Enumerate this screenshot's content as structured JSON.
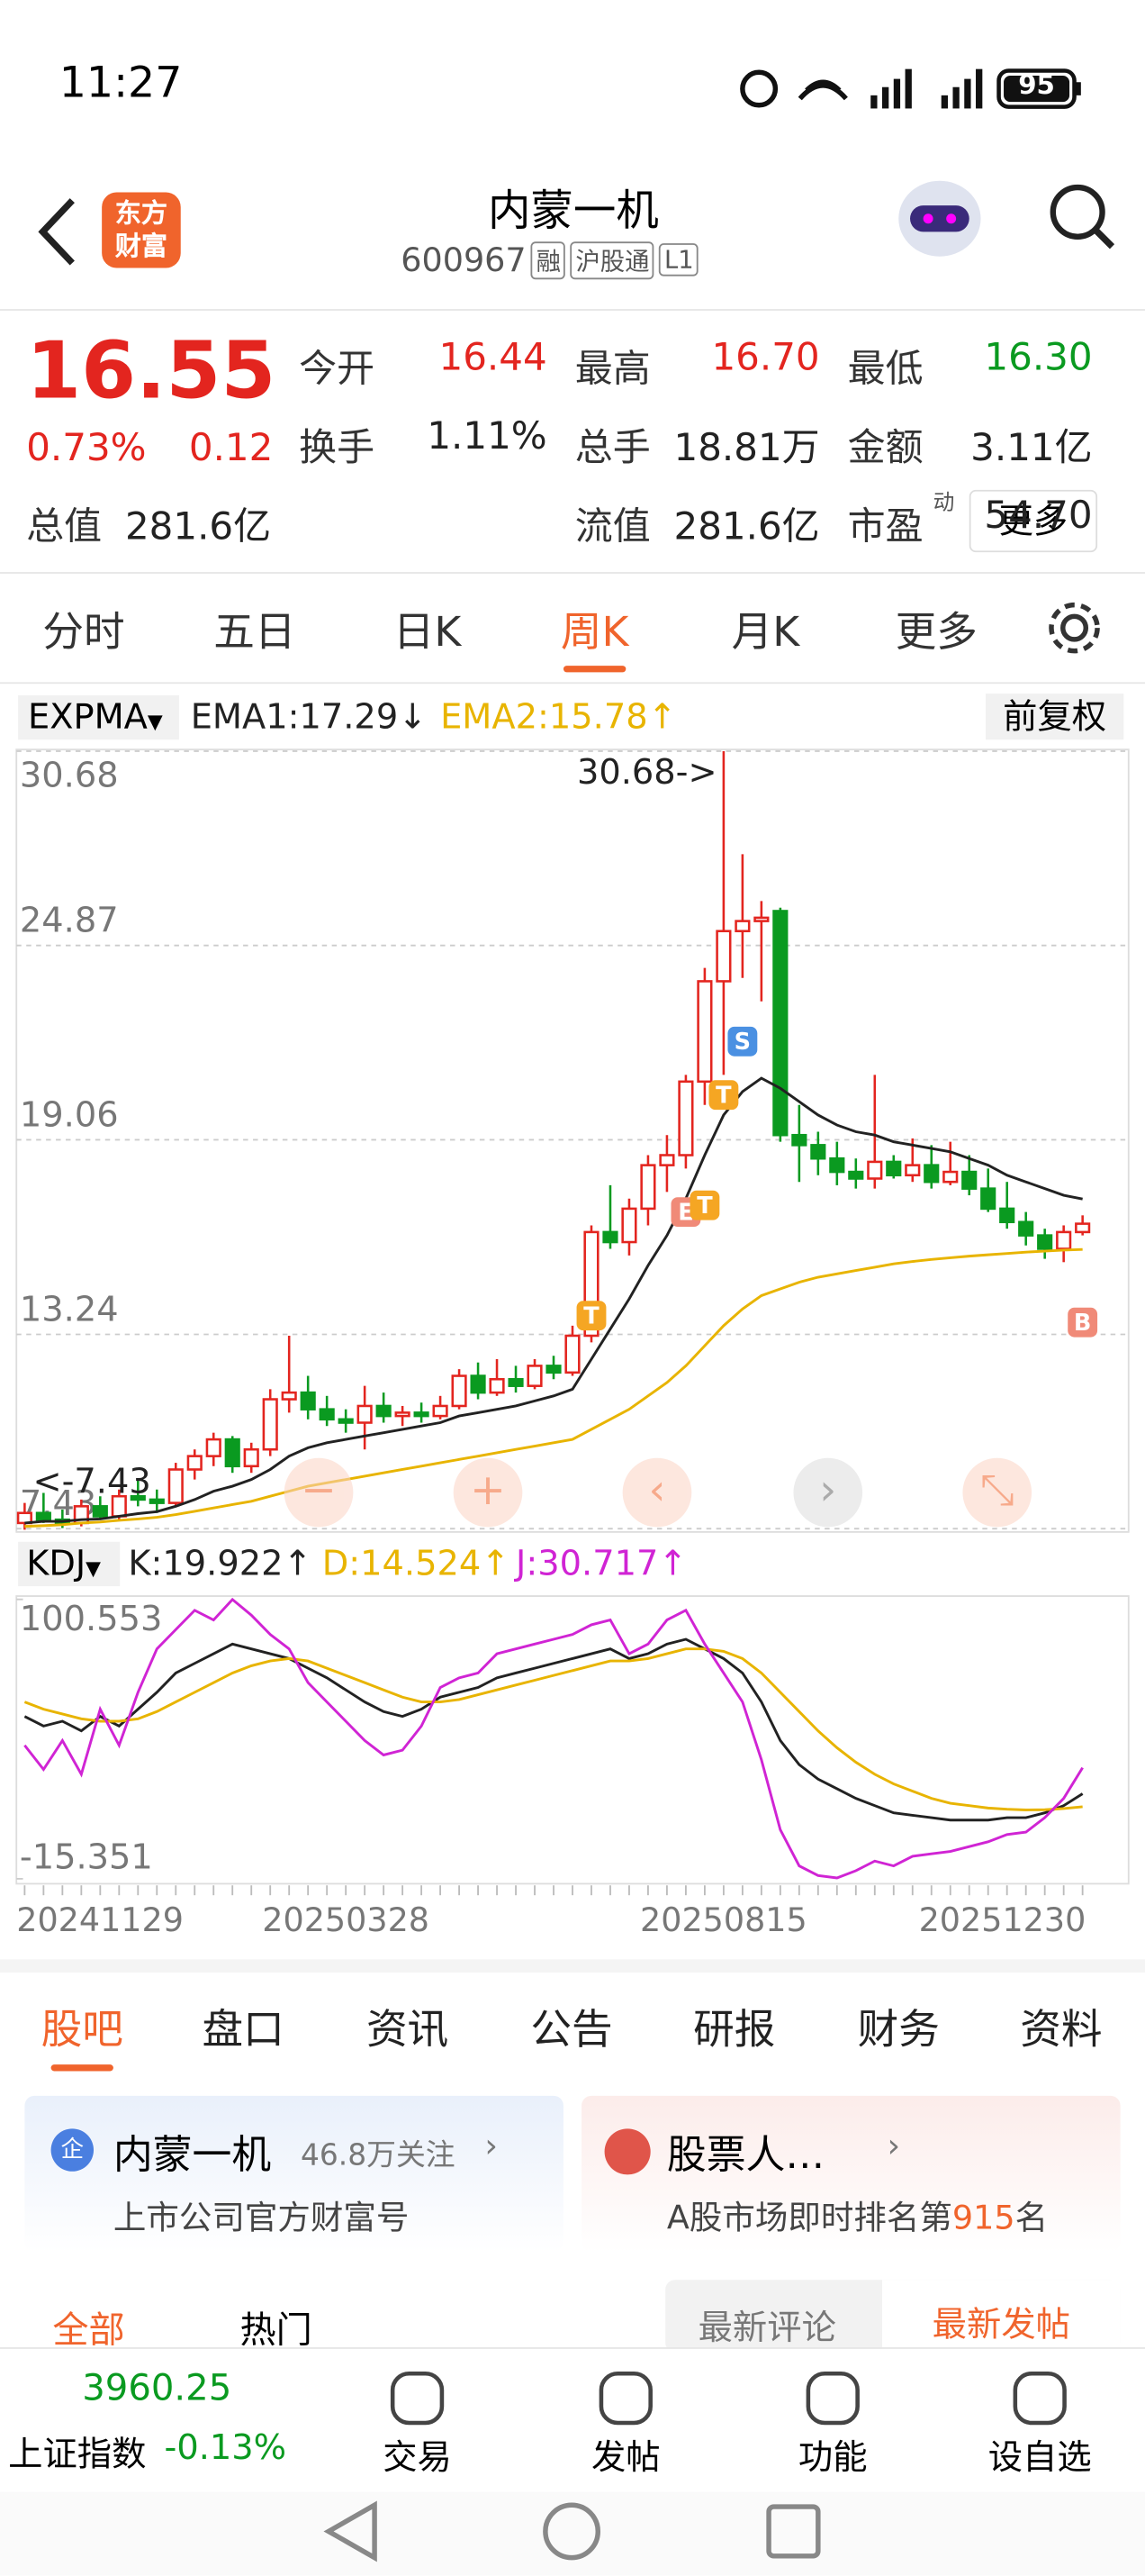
{
  "status_bar": {
    "time": "11:27",
    "battery": "95"
  },
  "header": {
    "logo": [
      "东方",
      "财富"
    ],
    "title": "内蒙一机",
    "code": "600967",
    "tags": [
      "融",
      "沪股通",
      "L1"
    ]
  },
  "quote": {
    "price": "16.55",
    "change_pct": "0.73%",
    "change": "0.12",
    "fields": [
      {
        "label": "今开",
        "value": "16.44",
        "color": "#e3251f"
      },
      {
        "label": "最高",
        "value": "16.70",
        "color": "#e3251f"
      },
      {
        "label": "最低",
        "value": "16.30",
        "color": "#0a9a20"
      },
      {
        "label": "换手",
        "value": "1.11%",
        "color": "#222"
      },
      {
        "label": "总手",
        "value": "18.81万",
        "color": "#222"
      },
      {
        "label": "金额",
        "value": "3.11亿",
        "color": "#222"
      },
      {
        "label": "总值",
        "value": "281.6亿",
        "color": "#222"
      },
      {
        "label": "流值",
        "value": "281.6亿",
        "color": "#222"
      },
      {
        "label": "市盈",
        "sup": "动",
        "value": "54.70",
        "color": "#222"
      }
    ],
    "more": "更多"
  },
  "period_tabs": {
    "items": [
      "分时",
      "五日",
      "日K",
      "周K",
      "月K",
      "更多"
    ],
    "active": 3
  },
  "chart_data": [
    {
      "type": "candlestick",
      "indicator": "EXPMA",
      "adjust": "前复权",
      "max_label": "30.68->",
      "min_label": "<-7.43",
      "ylim": [
        7.43,
        30.68
      ],
      "yticks": [
        7.43,
        13.24,
        19.06,
        24.87,
        30.68
      ],
      "grid": true,
      "up_color": "#e3251f",
      "down_color": "#0a9a20",
      "open": [
        7.6,
        7.9,
        7.7,
        7.6,
        8.1,
        7.8,
        8.4,
        8.3,
        8.2,
        9.2,
        9.6,
        10.1,
        9.3,
        9.8,
        11.3,
        11.5,
        11.0,
        10.7,
        10.6,
        11.1,
        10.8,
        10.9,
        10.8,
        11.1,
        12.0,
        11.5,
        11.9,
        11.7,
        12.3,
        12.1,
        13.2,
        16.3,
        16.0,
        17.0,
        18.3,
        18.6,
        20.8,
        23.8,
        25.3,
        25.6,
        25.9,
        19.2,
        18.9,
        18.5,
        18.1,
        17.9,
        18.4,
        18.0,
        18.3,
        17.8,
        18.1,
        17.6,
        17.0,
        16.6,
        16.2,
        15.8,
        16.3
      ],
      "high": [
        8.2,
        8.5,
        8.0,
        8.3,
        8.4,
        8.6,
        8.9,
        8.6,
        9.4,
        9.8,
        10.3,
        10.2,
        10.0,
        11.6,
        13.2,
        12.0,
        11.4,
        11.0,
        11.7,
        11.5,
        11.1,
        11.2,
        11.4,
        12.2,
        12.4,
        12.5,
        12.3,
        12.5,
        12.6,
        13.5,
        16.5,
        17.7,
        17.3,
        18.6,
        19.2,
        21.0,
        24.2,
        30.68,
        27.6,
        26.2,
        26.0,
        20.1,
        19.3,
        19.0,
        18.5,
        21.0,
        18.6,
        19.1,
        18.9,
        19.0,
        18.6,
        18.2,
        17.8,
        16.9,
        16.4,
        16.5,
        16.8
      ],
      "low": [
        7.4,
        7.6,
        7.45,
        7.5,
        7.7,
        7.7,
        8.1,
        7.9,
        8.1,
        8.9,
        9.3,
        9.1,
        9.1,
        9.6,
        10.9,
        10.7,
        10.5,
        10.3,
        9.8,
        10.6,
        10.5,
        10.6,
        10.7,
        11.0,
        11.3,
        11.4,
        11.5,
        11.6,
        11.9,
        12.0,
        13.0,
        15.8,
        15.6,
        16.5,
        17.5,
        18.2,
        20.1,
        21.0,
        23.9,
        23.2,
        19.0,
        17.8,
        18.0,
        17.7,
        17.6,
        17.6,
        17.9,
        17.8,
        17.6,
        17.7,
        17.4,
        16.9,
        16.4,
        15.9,
        15.5,
        15.4,
        16.2
      ],
      "close": [
        7.9,
        7.7,
        7.6,
        8.1,
        7.8,
        8.4,
        8.3,
        8.2,
        9.2,
        9.6,
        10.1,
        9.3,
        9.8,
        11.3,
        11.5,
        11.0,
        10.7,
        10.6,
        11.1,
        10.8,
        10.9,
        10.8,
        11.1,
        12.0,
        11.5,
        11.9,
        11.7,
        12.3,
        12.1,
        13.2,
        16.3,
        16.0,
        17.0,
        18.3,
        18.6,
        20.8,
        23.8,
        25.3,
        25.6,
        25.7,
        19.2,
        18.9,
        18.5,
        18.1,
        17.9,
        18.4,
        18.0,
        18.3,
        17.8,
        18.1,
        17.6,
        17.0,
        16.6,
        16.2,
        15.8,
        16.3,
        16.55
      ],
      "series": [
        {
          "name": "EMA1:17.29↓",
          "color": "#222222",
          "values": [
            7.6,
            7.65,
            7.65,
            7.7,
            7.72,
            7.8,
            7.88,
            7.94,
            8.1,
            8.3,
            8.55,
            8.7,
            8.9,
            9.2,
            9.6,
            9.85,
            10.0,
            10.1,
            10.2,
            10.3,
            10.4,
            10.5,
            10.6,
            10.8,
            10.9,
            11.0,
            11.1,
            11.25,
            11.4,
            11.6,
            12.5,
            13.4,
            14.3,
            15.3,
            16.2,
            17.3,
            18.6,
            19.8,
            20.5,
            20.9,
            20.6,
            20.2,
            19.8,
            19.5,
            19.3,
            19.2,
            19.0,
            18.9,
            18.8,
            18.7,
            18.5,
            18.3,
            18.0,
            17.8,
            17.6,
            17.4,
            17.29
          ]
        },
        {
          "name": "EMA2:15.78↑",
          "color": "#e8b400",
          "values": [
            7.5,
            7.52,
            7.55,
            7.6,
            7.63,
            7.68,
            7.72,
            7.77,
            7.85,
            7.95,
            8.05,
            8.15,
            8.25,
            8.4,
            8.55,
            8.7,
            8.8,
            8.9,
            9.0,
            9.1,
            9.2,
            9.3,
            9.4,
            9.5,
            9.6,
            9.7,
            9.8,
            9.9,
            10.0,
            10.1,
            10.4,
            10.7,
            11.0,
            11.4,
            11.8,
            12.3,
            12.9,
            13.5,
            14.0,
            14.4,
            14.6,
            14.8,
            14.95,
            15.05,
            15.15,
            15.25,
            15.35,
            15.42,
            15.48,
            15.53,
            15.58,
            15.62,
            15.66,
            15.7,
            15.73,
            15.76,
            15.78
          ]
        }
      ],
      "signals": [
        {
          "label": "T",
          "index": 30,
          "value": 13.8,
          "color": "#f5a623"
        },
        {
          "label": "E",
          "index": 35,
          "value": 16.9,
          "color": "#f08a78"
        },
        {
          "label": "T",
          "index": 36,
          "value": 17.1,
          "color": "#f5a623"
        },
        {
          "label": "T",
          "index": 37,
          "value": 20.4,
          "color": "#f5a623"
        },
        {
          "label": "S",
          "index": 38,
          "value": 22.0,
          "color": "#4a90e2"
        },
        {
          "label": "B",
          "index": 56,
          "value": 13.6,
          "color": "#f08a78"
        }
      ]
    },
    {
      "type": "line",
      "indicator": "KDJ",
      "ylim": [
        -15.351,
        100.553
      ],
      "yticks": [
        -15.351,
        100.553
      ],
      "categories": [
        "20241129",
        null,
        null,
        null,
        null,
        null,
        null,
        null,
        null,
        null,
        null,
        null,
        null,
        null,
        null,
        null,
        null,
        "20250328",
        null,
        null,
        null,
        null,
        null,
        null,
        null,
        null,
        null,
        null,
        null,
        null,
        null,
        null,
        null,
        null,
        null,
        null,
        null,
        "20250815",
        null,
        null,
        null,
        null,
        null,
        null,
        null,
        null,
        null,
        null,
        null,
        null,
        null,
        null,
        null,
        null,
        null,
        null,
        "20251230"
      ],
      "series": [
        {
          "name": "K:19.922↑",
          "color": "#222222",
          "values": [
            52,
            48,
            50,
            46,
            52,
            48,
            55,
            62,
            70,
            74,
            78,
            82,
            80,
            78,
            76,
            72,
            68,
            63,
            58,
            54,
            52,
            55,
            60,
            62,
            64,
            68,
            70,
            72,
            74,
            76,
            78,
            80,
            76,
            78,
            82,
            84,
            80,
            76,
            70,
            58,
            42,
            32,
            26,
            22,
            18,
            15,
            12,
            11,
            10,
            9,
            9,
            9,
            10,
            10,
            12,
            15,
            19.922
          ]
        },
        {
          "name": "D:14.524↑",
          "color": "#e8b400",
          "values": [
            58,
            55,
            53,
            51,
            50,
            50,
            51,
            54,
            58,
            62,
            66,
            70,
            73,
            75,
            76,
            75,
            72,
            69,
            66,
            63,
            60,
            58,
            58,
            59,
            61,
            63,
            65,
            67,
            69,
            71,
            73,
            75,
            75,
            76,
            78,
            80,
            80,
            79,
            76,
            70,
            62,
            54,
            46,
            39,
            33,
            28,
            24,
            21,
            18,
            16,
            15,
            14,
            13.5,
            13.2,
            13.3,
            13.8,
            14.524
          ]
        },
        {
          "name": "J:30.717↑",
          "color": "#d024d4",
          "values": [
            40,
            30,
            42,
            28,
            55,
            40,
            62,
            80,
            88,
            96,
            92,
            100.5,
            94,
            86,
            80,
            66,
            58,
            50,
            42,
            36,
            38,
            48,
            64,
            68,
            70,
            78,
            80,
            82,
            84,
            86,
            90,
            92,
            78,
            82,
            92,
            96,
            82,
            70,
            58,
            34,
            5,
            -10,
            -14,
            -15,
            -12,
            -8,
            -10,
            -6,
            -5,
            -4,
            -2,
            0,
            3,
            4,
            10,
            18,
            30.717
          ]
        }
      ]
    }
  ],
  "content_tabs": {
    "items": [
      "股吧",
      "盘口",
      "资讯",
      "公告",
      "研报",
      "财务",
      "资料"
    ],
    "active": 0
  },
  "cards": [
    {
      "title": "内蒙一机",
      "followers": "46.8万关注",
      "subtitle": "上市公司官方财富号"
    },
    {
      "title": "股票人…",
      "subtitle_pre": "A股市场即时排名第",
      "rank": "915",
      "subtitle_post": "名"
    }
  ],
  "filters": {
    "left": [
      "全部",
      "热门"
    ],
    "right": [
      "最新评论",
      "最新发帖"
    ]
  },
  "bottom_bar": {
    "index_value": "3960.25",
    "index_name": "上证指数",
    "index_change": "-0.13%",
    "items": [
      "交易",
      "发帖",
      "功能",
      "设自选"
    ]
  }
}
